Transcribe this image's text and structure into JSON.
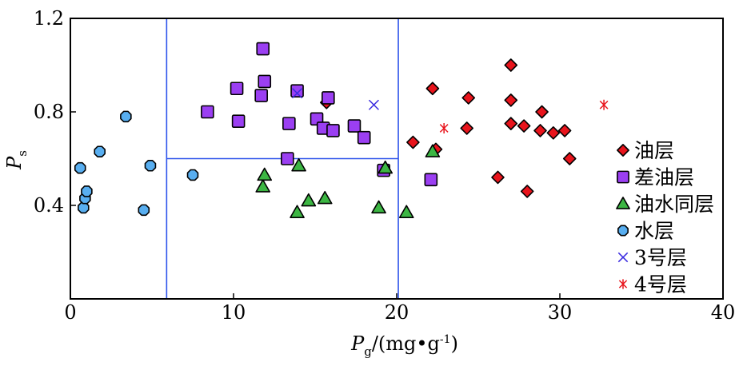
{
  "chart_data": {
    "type": "scatter",
    "title": "",
    "xlabel": "P",
    "xlabel_sub": "g",
    "xlabel_unit": "/(mg•g",
    "xlabel_sup": "-1",
    "xlabel_close": ")",
    "ylabel": "P",
    "ylabel_sub": "s",
    "xlim": [
      0,
      40
    ],
    "ylim": [
      0,
      1.2
    ],
    "xticks": [
      {
        "value": 0,
        "label": "0"
      },
      {
        "value": 10,
        "label": "10"
      },
      {
        "value": 20,
        "label": "20"
      },
      {
        "value": 30,
        "label": "30"
      },
      {
        "value": 40,
        "label": "40"
      }
    ],
    "yticks": [
      {
        "value": 0.4,
        "label": "0.4"
      },
      {
        "value": 0.8,
        "label": "0.8"
      },
      {
        "value": 1.2,
        "label": "1.2"
      }
    ],
    "grid": false,
    "legend_position": "right",
    "reference_lines": {
      "vertical": [
        {
          "x": 5.9,
          "y_range": [
            0,
            1.2
          ]
        },
        {
          "x": 20.1,
          "y_range": [
            0,
            1.2
          ]
        }
      ],
      "horizontal": [
        {
          "y": 0.6,
          "x_range": [
            5.9,
            20.1
          ]
        }
      ],
      "color": "#2f54eb"
    },
    "series": [
      {
        "name": "油层",
        "marker": "diamond",
        "color": "#e8141c",
        "points": [
          [
            15.7,
            0.84
          ],
          [
            21.0,
            0.67
          ],
          [
            22.2,
            0.9
          ],
          [
            22.4,
            0.64
          ],
          [
            24.3,
            0.73
          ],
          [
            24.4,
            0.86
          ],
          [
            26.2,
            0.52
          ],
          [
            27.0,
            1.0
          ],
          [
            27.0,
            0.85
          ],
          [
            27.0,
            0.75
          ],
          [
            27.8,
            0.74
          ],
          [
            28.0,
            0.46
          ],
          [
            28.8,
            0.72
          ],
          [
            28.9,
            0.8
          ],
          [
            29.6,
            0.71
          ],
          [
            30.3,
            0.72
          ],
          [
            30.6,
            0.6
          ]
        ]
      },
      {
        "name": "差油层",
        "marker": "square",
        "color": "#9b3ff2",
        "points": [
          [
            8.4,
            0.8
          ],
          [
            10.2,
            0.9
          ],
          [
            10.3,
            0.76
          ],
          [
            11.7,
            0.87
          ],
          [
            11.8,
            1.07
          ],
          [
            11.9,
            0.93
          ],
          [
            13.3,
            0.6
          ],
          [
            13.4,
            0.75
          ],
          [
            13.9,
            0.89
          ],
          [
            15.1,
            0.77
          ],
          [
            15.5,
            0.73
          ],
          [
            15.8,
            0.86
          ],
          [
            16.1,
            0.72
          ],
          [
            17.4,
            0.74
          ],
          [
            18.0,
            0.69
          ],
          [
            19.2,
            0.55
          ],
          [
            22.1,
            0.51
          ]
        ]
      },
      {
        "name": "油水同层",
        "marker": "triangle",
        "color": "#3cb643",
        "points": [
          [
            11.8,
            0.48
          ],
          [
            11.9,
            0.53
          ],
          [
            13.9,
            0.37
          ],
          [
            14.0,
            0.57
          ],
          [
            14.6,
            0.42
          ],
          [
            15.6,
            0.43
          ],
          [
            18.9,
            0.39
          ],
          [
            19.3,
            0.56
          ],
          [
            20.6,
            0.37
          ],
          [
            22.2,
            0.63
          ]
        ]
      },
      {
        "name": "水层",
        "marker": "circle",
        "color": "#58aef0",
        "points": [
          [
            0.6,
            0.56
          ],
          [
            0.8,
            0.39
          ],
          [
            0.9,
            0.43
          ],
          [
            1.0,
            0.46
          ],
          [
            1.8,
            0.63
          ],
          [
            3.4,
            0.78
          ],
          [
            4.5,
            0.38
          ],
          [
            4.9,
            0.57
          ],
          [
            7.5,
            0.53
          ]
        ]
      },
      {
        "name": "3号层",
        "marker": "x",
        "color": "#3a2be0",
        "points": [
          [
            13.9,
            0.88
          ],
          [
            18.6,
            0.83
          ]
        ]
      },
      {
        "name": "4号层",
        "marker": "asterisk",
        "color": "#e8141c",
        "points": [
          [
            22.9,
            0.73
          ],
          [
            32.7,
            0.83
          ]
        ]
      }
    ]
  }
}
